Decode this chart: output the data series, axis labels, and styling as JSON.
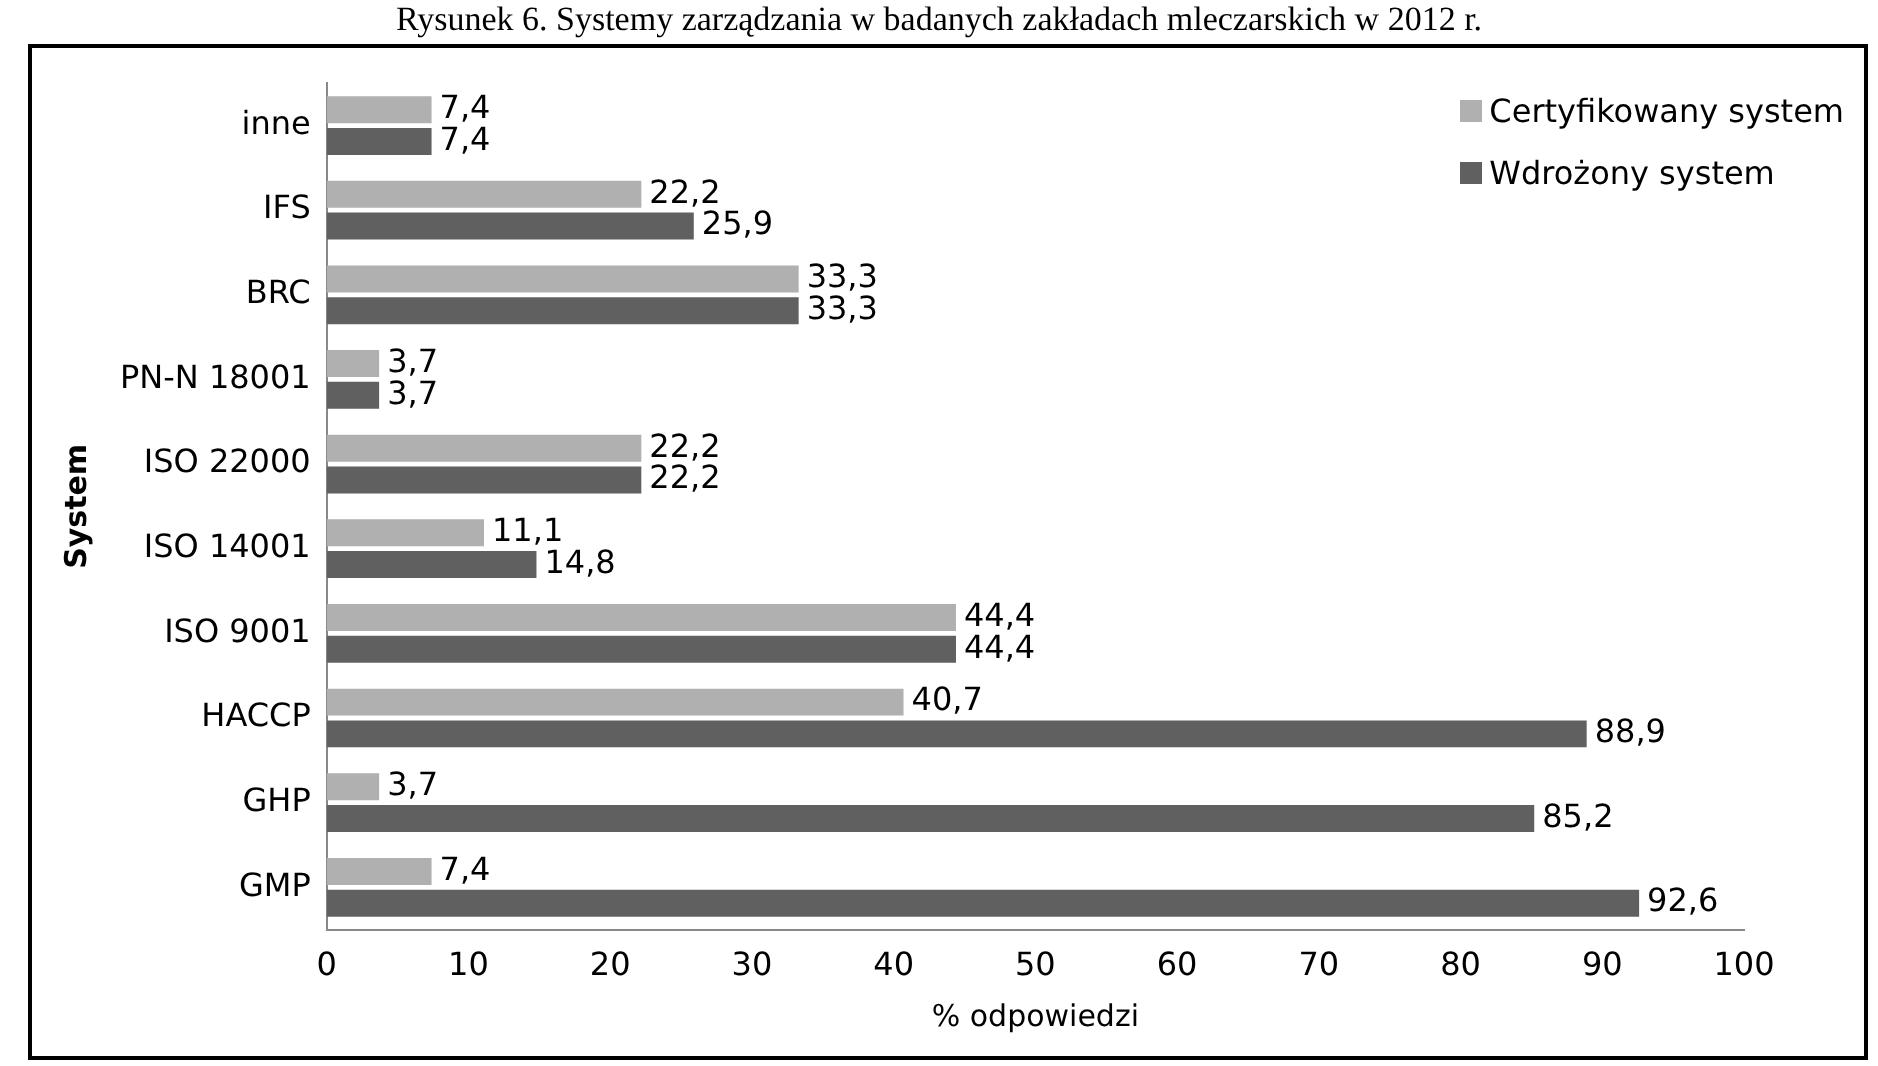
{
  "chart_data": {
    "type": "bar",
    "orientation": "horizontal",
    "title": "Rysunek 6. Systemy zarządzania w badanych zakładach mleczarskich w 2012 r.",
    "xlabel": "% odpowiedzi",
    "ylabel": "System",
    "categories": [
      "inne",
      "IFS",
      "BRC",
      "PN-N 18001",
      "ISO 22000",
      "ISO 14001",
      "ISO 9001",
      "HACCP",
      "GHP",
      "GMP"
    ],
    "series": [
      {
        "name": "Certyfikowany system",
        "color": "#b0b0b0",
        "values": [
          7.4,
          22.2,
          33.3,
          3.7,
          22.2,
          11.1,
          44.4,
          40.7,
          3.7,
          7.4
        ],
        "value_labels": [
          "7,4",
          "22,2",
          "33,3",
          "3,7",
          "22,2",
          "11,1",
          "44,4",
          "40,7",
          "3,7",
          "7,4"
        ]
      },
      {
        "name": "Wdrożony system",
        "color": "#606060",
        "values": [
          7.4,
          25.9,
          33.3,
          3.7,
          22.2,
          14.8,
          44.4,
          88.9,
          85.2,
          92.6
        ],
        "value_labels": [
          "7,4",
          "25,9",
          "33,3",
          "3,7",
          "22,2",
          "14,8",
          "44,4",
          "88,9",
          "85,2",
          "92,6"
        ]
      }
    ],
    "xlim": [
      0,
      100
    ],
    "xticks": [
      0,
      10,
      20,
      30,
      40,
      50,
      60,
      70,
      80,
      90,
      100
    ],
    "grid": false,
    "legend": "top right"
  }
}
